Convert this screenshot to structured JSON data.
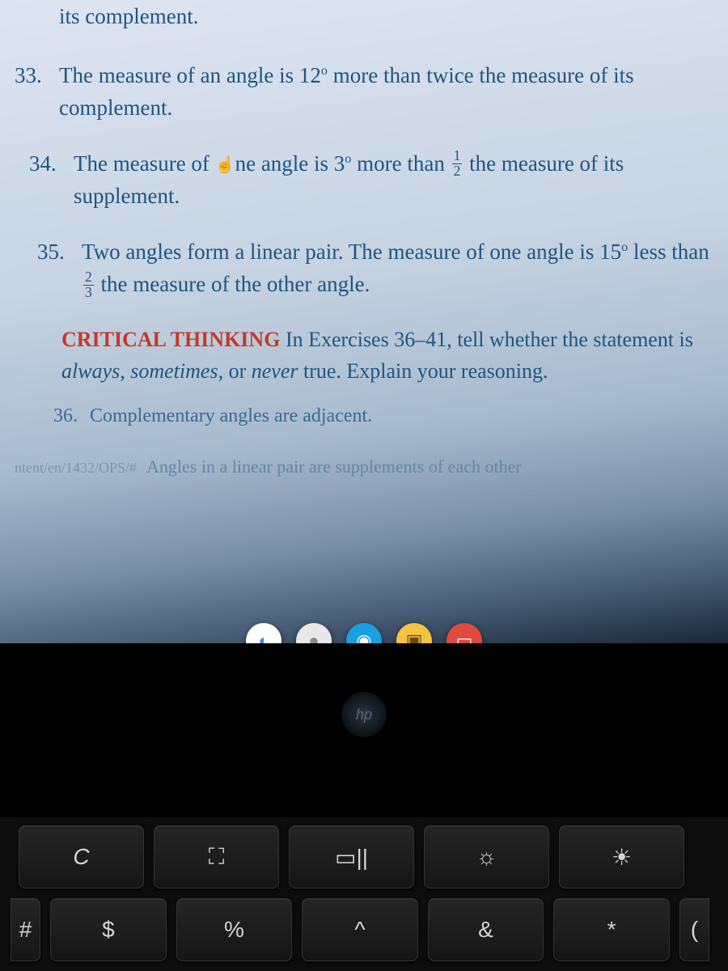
{
  "textbook": {
    "partial_top": "its complement.",
    "problems": {
      "p33": {
        "number": "33.",
        "text_a": "The measure of an angle is 12",
        "deg": "o",
        "text_b": " more than twice the measure of its complement."
      },
      "p34": {
        "number": "34.",
        "text_a": "The measure of ",
        "cursor_word": "ne",
        "text_b": " angle is 3",
        "deg": "o",
        "text_c": " more than ",
        "frac_n": "1",
        "frac_d": "2",
        "text_d": " the measure of its supplement."
      },
      "p35": {
        "number": "35.",
        "text_a": "Two angles form a linear pair. The measure of one angle is 15",
        "deg": "o",
        "text_b": " less than ",
        "frac_n": "2",
        "frac_d": "3",
        "text_c": " the measure of the other angle."
      },
      "critical": {
        "header": "CRITICAL THINKING",
        "body_a": " In Exercises 36–41, tell whether the statement is ",
        "em1": "always",
        "sep1": ", ",
        "em2": "sometimes",
        "sep2": ", or ",
        "em3": "never",
        "body_b": " true. Explain your reasoning."
      },
      "p36": {
        "number": "36.",
        "text": "Complementary angles are adjacent."
      },
      "p37": {
        "tag": "ntent/en/1432/OPS/#",
        "text": "Angles in a linear pair are supplements of each other"
      }
    }
  },
  "shelf": {
    "apps": [
      {
        "bg": "#ffffff",
        "glyph": "◐",
        "color": "#4285f4",
        "name": "chrome-icon"
      },
      {
        "bg": "#e8e8e8",
        "glyph": "●",
        "color": "#888",
        "name": "app-icon-2"
      },
      {
        "bg": "#1a9fe0",
        "glyph": "◉",
        "color": "#fff",
        "name": "zoom-icon"
      },
      {
        "bg": "#f5c242",
        "glyph": "▣",
        "color": "#6b4a00",
        "name": "app-icon-4"
      },
      {
        "bg": "#e0493e",
        "glyph": "▭",
        "color": "#fff",
        "name": "slides-icon"
      }
    ]
  },
  "hp_text": "hp",
  "keyboard": {
    "row1": [
      {
        "label": "C",
        "name": "key-refresh",
        "cls": "n",
        "style": "font-style:italic"
      },
      {
        "label": "⛶",
        "name": "key-fullscreen",
        "cls": "n"
      },
      {
        "label": "▭||",
        "name": "key-overview",
        "cls": "n"
      },
      {
        "label": "☼",
        "name": "key-brightness-down",
        "cls": "n",
        "style": "font-size:22px"
      },
      {
        "label": "☀",
        "name": "key-brightness-up",
        "cls": "n",
        "style": "font-size:26px"
      }
    ],
    "row2": [
      {
        "label": "#",
        "name": "key-hash",
        "cls": "half edge-l"
      },
      {
        "label": "$",
        "name": "key-dollar",
        "cls": "n"
      },
      {
        "label": "%",
        "name": "key-percent",
        "cls": "n"
      },
      {
        "label": "^",
        "name": "key-caret",
        "cls": "n"
      },
      {
        "label": "&",
        "name": "key-ampersand",
        "cls": "n"
      },
      {
        "label": "*",
        "name": "key-asterisk",
        "cls": "n"
      },
      {
        "label": "(",
        "name": "key-paren",
        "cls": "half edge-r"
      }
    ]
  },
  "colors": {
    "text_primary": "#1e5580",
    "critical_header": "#c23a2a"
  }
}
